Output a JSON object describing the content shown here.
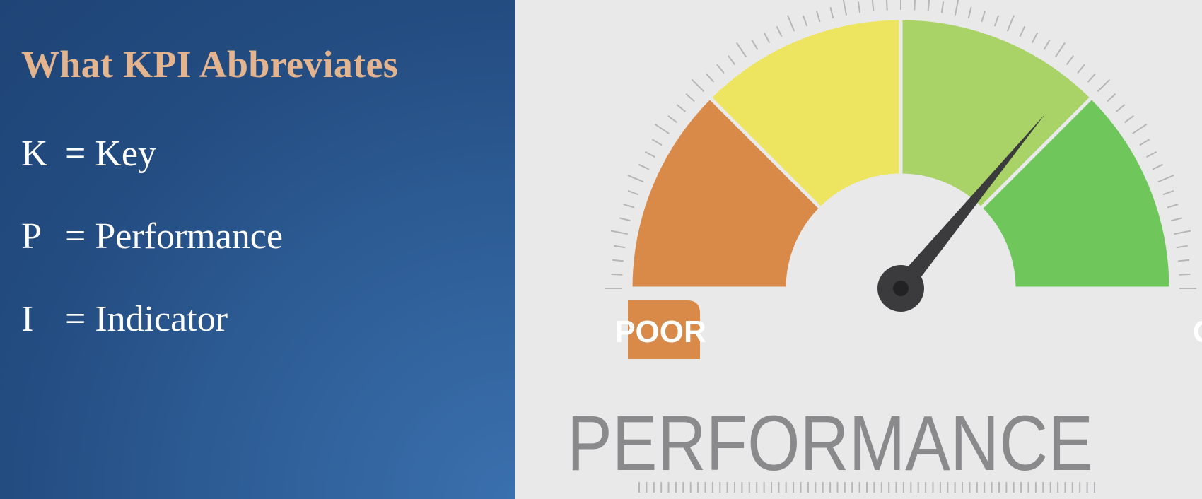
{
  "slide": {
    "heading": "What KPI Abbreviates",
    "definitions": [
      {
        "letter": "K",
        "text": "= Key"
      },
      {
        "letter": "P",
        "text": "= Performance"
      },
      {
        "letter": "I",
        "text": "= Indicator"
      }
    ]
  },
  "gauge": {
    "title": "PERFORMANCE",
    "poor_label": "POOR",
    "good_label": "GOOD",
    "needle_level": 0.72,
    "colors": {
      "poor": "#d98a49",
      "fair": "#ede45f",
      "decent": "#a9d366",
      "good": "#6fc75c",
      "needle": "#3b3b3d",
      "ticks": "#b6b6b8",
      "title": "#8a8a8c",
      "label_text": "#ffffff"
    }
  }
}
